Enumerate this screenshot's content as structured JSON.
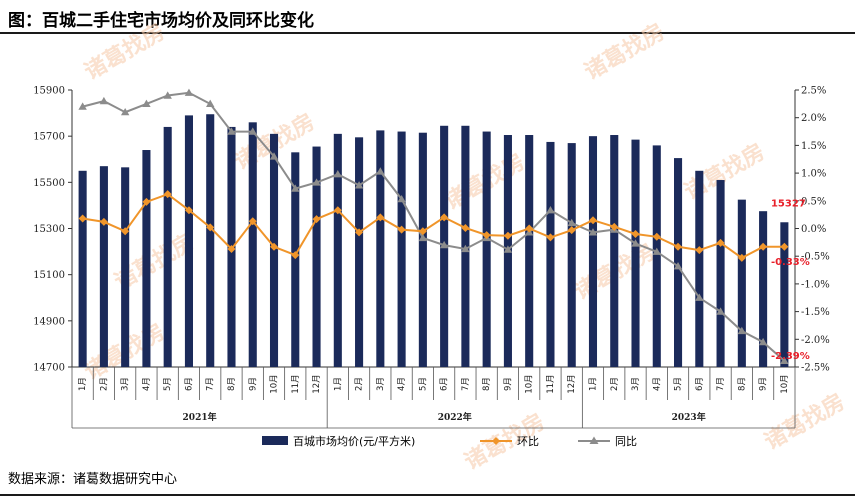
{
  "title": "图：百城二手住宅市场均价及同环比变化",
  "source": "数据来源：诸葛数据研究中心",
  "watermark": "诸葛找房",
  "colors": {
    "bar": "#1b2a5a",
    "mom": "#f0952a",
    "yoy": "#8c8c8c",
    "annot": "#e8202a"
  },
  "chart_data": {
    "type": "bar+line",
    "title": "图：百城二手住宅市场均价及同环比变化",
    "months": [
      "1月",
      "2月",
      "3月",
      "4月",
      "5月",
      "6月",
      "7月",
      "8月",
      "9月",
      "10月",
      "11月",
      "12月",
      "1月",
      "2月",
      "3月",
      "4月",
      "5月",
      "6月",
      "7月",
      "8月",
      "9月",
      "10月",
      "11月",
      "12月",
      "1月",
      "2月",
      "3月",
      "4月",
      "5月",
      "6月",
      "7月",
      "8月",
      "9月",
      "10月"
    ],
    "years": [
      {
        "label": "2021年",
        "count": 12
      },
      {
        "label": "2022年",
        "count": 12
      },
      {
        "label": "2023年",
        "count": 10
      }
    ],
    "left_axis": {
      "min": 14700,
      "max": 15900,
      "ticks": [
        14700,
        14900,
        15100,
        15300,
        15500,
        15700,
        15900
      ]
    },
    "right_axis": {
      "min": -2.5,
      "max": 2.5,
      "ticks": [
        "2.5%",
        "2.0%",
        "1.5%",
        "1.0%",
        "0.5%",
        "0.0%",
        "-0.5%",
        "-1.0%",
        "-1.5%",
        "-2.0%",
        "-2.5%"
      ]
    },
    "series": [
      {
        "name": "百城市场均价(元/平方米)",
        "type": "bar",
        "axis": "left",
        "values": [
          15550,
          15570,
          15565,
          15640,
          15740,
          15790,
          15795,
          15740,
          15760,
          15710,
          15630,
          15655,
          15710,
          15695,
          15725,
          15720,
          15715,
          15745,
          15745,
          15720,
          15705,
          15705,
          15675,
          15670,
          15700,
          15705,
          15685,
          15660,
          15605,
          15550,
          15510,
          15425,
          15375,
          15327
        ]
      },
      {
        "name": "环比",
        "type": "line",
        "axis": "right",
        "marker": "diamond",
        "values": [
          0.18,
          0.12,
          -0.05,
          0.48,
          0.62,
          0.33,
          0.02,
          -0.37,
          0.13,
          -0.33,
          -0.48,
          0.17,
          0.33,
          -0.07,
          0.2,
          -0.02,
          -0.05,
          0.2,
          0.01,
          -0.12,
          -0.13,
          0.0,
          -0.16,
          -0.03,
          0.15,
          0.03,
          -0.1,
          -0.15,
          -0.33,
          -0.39,
          -0.26,
          -0.53,
          -0.33,
          -0.33
        ]
      },
      {
        "name": "同比",
        "type": "line",
        "axis": "right",
        "marker": "triangle",
        "values": [
          2.2,
          2.3,
          2.1,
          2.25,
          2.4,
          2.45,
          2.25,
          1.75,
          1.75,
          1.3,
          0.72,
          0.83,
          0.98,
          0.78,
          1.03,
          0.53,
          -0.17,
          -0.3,
          -0.37,
          -0.17,
          -0.38,
          -0.07,
          0.33,
          0.1,
          -0.07,
          -0.02,
          -0.27,
          -0.42,
          -0.68,
          -1.25,
          -1.5,
          -1.85,
          -2.05,
          -2.39
        ]
      }
    ],
    "annotations": [
      {
        "text": "15327",
        "series": "百城市场均价(元/平方米)",
        "index": 33
      },
      {
        "text": "-0.33%",
        "series": "环比",
        "index": 33
      },
      {
        "text": "-2.39%",
        "series": "同比",
        "index": 33
      }
    ],
    "legend": [
      "百城市场均价(元/平方米)",
      "环比",
      "同比"
    ]
  }
}
